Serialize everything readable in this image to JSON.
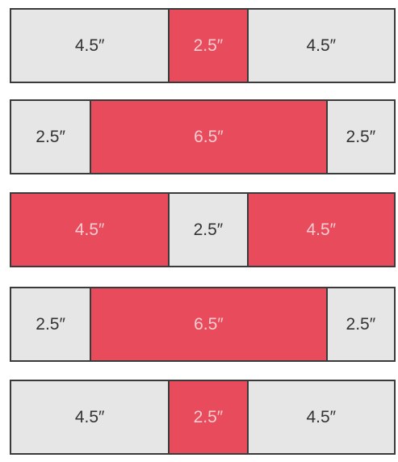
{
  "rows": [
    {
      "segments": [
        {
          "label": "4.5″",
          "color": "#e6e6e6"
        },
        {
          "label": "2.5″",
          "color": "#e84b5b"
        },
        {
          "label": "4.5″",
          "color": "#e6e6e6"
        }
      ]
    },
    {
      "segments": [
        {
          "label": "2.5″",
          "color": "#e6e6e6"
        },
        {
          "label": "6.5″",
          "color": "#e84b5b"
        },
        {
          "label": "2.5″",
          "color": "#e6e6e6"
        }
      ]
    },
    {
      "segments": [
        {
          "label": "4.5″",
          "color": "#e84b5b"
        },
        {
          "label": "2.5″",
          "color": "#e6e6e6"
        },
        {
          "label": "4.5″",
          "color": "#e84b5b"
        }
      ]
    },
    {
      "segments": [
        {
          "label": "2.5″",
          "color": "#e6e6e6"
        },
        {
          "label": "6.5″",
          "color": "#e84b5b"
        },
        {
          "label": "2.5″",
          "color": "#e6e6e6"
        }
      ]
    },
    {
      "segments": [
        {
          "label": "4.5″",
          "color": "#e6e6e6"
        },
        {
          "label": "2.5″",
          "color": "#e84b5b"
        },
        {
          "label": "4.5″",
          "color": "#e6e6e6"
        }
      ]
    }
  ]
}
